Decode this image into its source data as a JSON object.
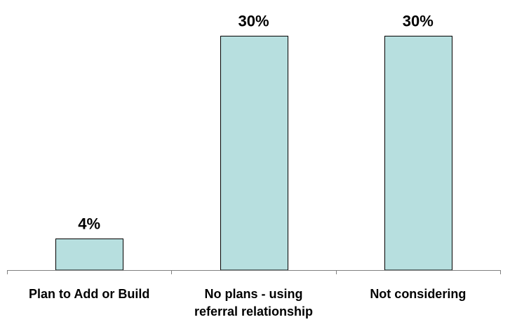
{
  "chart_data": {
    "type": "bar",
    "categories": [
      [
        "Plan to Add or Build"
      ],
      [
        "No plans - using",
        "referral relationship"
      ],
      [
        "Not considering"
      ]
    ],
    "values": [
      4,
      30,
      30
    ],
    "data_labels": [
      "4%",
      "30%",
      "30%"
    ],
    "title": "",
    "xlabel": "",
    "ylabel": "",
    "ylim": [
      0,
      30
    ],
    "grid": false,
    "legend": "none",
    "colors": {
      "bar_fill": "#b7dfdf",
      "bar_stroke": "#000000",
      "axis": "#808080"
    }
  }
}
